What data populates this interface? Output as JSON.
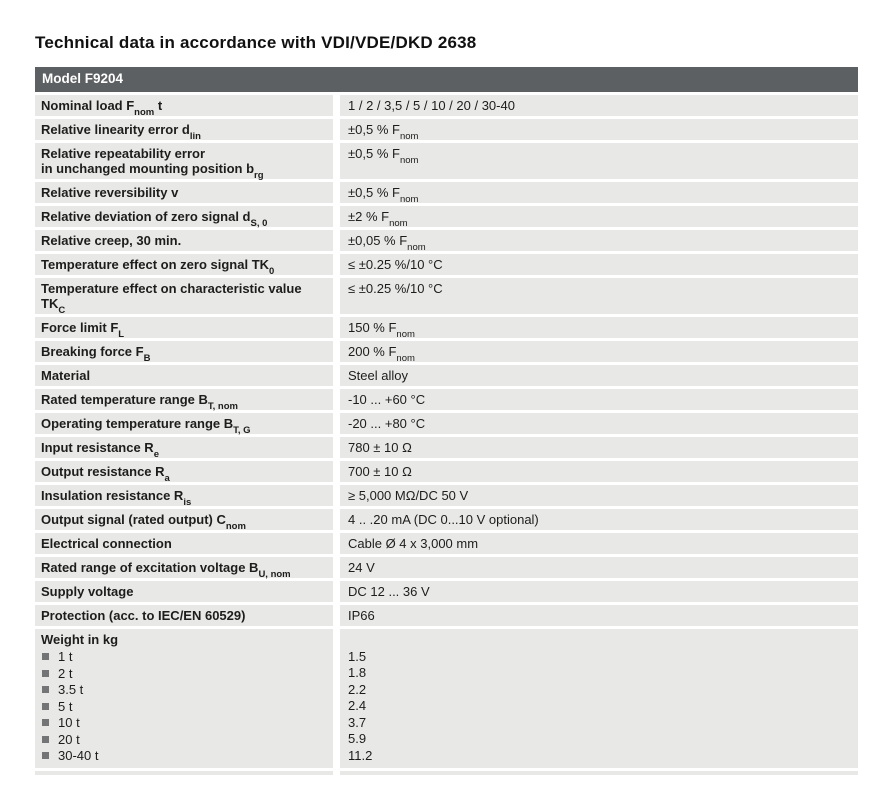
{
  "page": {
    "title": "Technical data in accordance with VDI/VDE/DKD 2638"
  },
  "table": {
    "header": "Model F9204",
    "rows": [
      {
        "label": [
          [
            "t",
            "Nominal load F"
          ],
          [
            "sub",
            "nom"
          ],
          [
            "t",
            " t"
          ]
        ],
        "value": [
          [
            "t",
            "1 / 2 / 3,5 / 5 / 10 / 20 / 30-40"
          ]
        ]
      },
      {
        "label": [
          [
            "t",
            "Relative linearity error d"
          ],
          [
            "sub",
            "lin"
          ]
        ],
        "value": [
          [
            "t",
            "±0,5 % F"
          ],
          [
            "sub",
            "nom"
          ]
        ]
      },
      {
        "label": [
          [
            "t",
            "Relative repeatability error"
          ],
          [
            "br",
            ""
          ],
          [
            "t",
            "in unchanged mounting position b"
          ],
          [
            "sub",
            "rg"
          ]
        ],
        "value": [
          [
            "t",
            "±0,5 % F"
          ],
          [
            "sub",
            "nom"
          ]
        ]
      },
      {
        "label": [
          [
            "t",
            "Relative reversibility v"
          ]
        ],
        "value": [
          [
            "t",
            "±0,5 % F"
          ],
          [
            "sub",
            "nom"
          ]
        ]
      },
      {
        "label": [
          [
            "t",
            "Relative deviation of zero signal d"
          ],
          [
            "sub",
            "S, 0"
          ]
        ],
        "value": [
          [
            "t",
            "±2 % F"
          ],
          [
            "sub",
            "nom"
          ]
        ]
      },
      {
        "label": [
          [
            "t",
            "Relative creep, 30 min."
          ]
        ],
        "value": [
          [
            "t",
            "±0,05 % F"
          ],
          [
            "sub",
            "nom"
          ]
        ]
      },
      {
        "label": [
          [
            "t",
            "Temperature effect on zero signal TK"
          ],
          [
            "sub",
            "0"
          ]
        ],
        "value": [
          [
            "t",
            "≤ ±0.25 %/10 °C"
          ]
        ]
      },
      {
        "label": [
          [
            "t",
            "Temperature effect on characteristic value TK"
          ],
          [
            "sub",
            "C"
          ]
        ],
        "value": [
          [
            "t",
            "≤ ±0.25 %/10 °C"
          ]
        ]
      },
      {
        "label": [
          [
            "t",
            "Force limit F"
          ],
          [
            "sub",
            "L"
          ]
        ],
        "value": [
          [
            "t",
            "150 % F"
          ],
          [
            "sub",
            "nom"
          ]
        ]
      },
      {
        "label": [
          [
            "t",
            "Breaking force F"
          ],
          [
            "sub",
            "B"
          ]
        ],
        "value": [
          [
            "t",
            "200 % F"
          ],
          [
            "sub",
            "nom"
          ]
        ]
      },
      {
        "label": [
          [
            "t",
            "Material"
          ]
        ],
        "value": [
          [
            "t",
            "Steel alloy"
          ]
        ]
      },
      {
        "label": [
          [
            "t",
            "Rated temperature range B"
          ],
          [
            "sub",
            "T, nom"
          ]
        ],
        "value": [
          [
            "t",
            "-10 ... +60 °C"
          ]
        ]
      },
      {
        "label": [
          [
            "t",
            "Operating temperature range B"
          ],
          [
            "sub",
            "T, G"
          ]
        ],
        "value": [
          [
            "t",
            "-20 ... +80 °C"
          ]
        ]
      },
      {
        "label": [
          [
            "t",
            "Input resistance R"
          ],
          [
            "sub",
            "e"
          ]
        ],
        "value": [
          [
            "t",
            "780 ± 10 Ω"
          ]
        ]
      },
      {
        "label": [
          [
            "t",
            "Output resistance R"
          ],
          [
            "sub",
            "a"
          ]
        ],
        "value": [
          [
            "t",
            "700 ± 10 Ω"
          ]
        ]
      },
      {
        "label": [
          [
            "t",
            "Insulation resistance R"
          ],
          [
            "sub",
            "is"
          ]
        ],
        "value": [
          [
            "t",
            "≥ 5,000 MΩ/DC 50 V"
          ]
        ]
      },
      {
        "label": [
          [
            "t",
            "Output signal (rated output) C"
          ],
          [
            "sub",
            "nom"
          ]
        ],
        "value": [
          [
            "t",
            "4 .. .20 mA (DC 0...10 V optional)"
          ]
        ]
      },
      {
        "label": [
          [
            "t",
            "Electrical connection"
          ]
        ],
        "value": [
          [
            "t",
            "Cable Ø 4 x 3,000 mm"
          ]
        ]
      },
      {
        "label": [
          [
            "t",
            "Rated range of excitation voltage B"
          ],
          [
            "sub",
            "U, nom"
          ]
        ],
        "value": [
          [
            "t",
            "24 V"
          ]
        ]
      },
      {
        "label": [
          [
            "t",
            "Supply voltage"
          ]
        ],
        "value": [
          [
            "t",
            "DC 12 ... 36 V"
          ]
        ]
      },
      {
        "label": [
          [
            "t",
            "Protection (acc. to IEC/EN 60529)"
          ]
        ],
        "value": [
          [
            "t",
            "IP66"
          ]
        ]
      }
    ],
    "weight_section": {
      "header": "Weight in kg",
      "items": [
        {
          "label": "1 t",
          "value": "1.5"
        },
        {
          "label": "2 t",
          "value": "1.8"
        },
        {
          "label": "3.5 t",
          "value": "2.2"
        },
        {
          "label": "5 t",
          "value": "2.4"
        },
        {
          "label": "10 t",
          "value": "3.7"
        },
        {
          "label": "20 t",
          "value": "5.9"
        },
        {
          "label": "30-40 t",
          "value": "11.2"
        }
      ]
    }
  },
  "colors": {
    "header_bg": "#5d6062",
    "header_text": "#ffffff",
    "row_bg": "#e8e8e7",
    "text": "#1d1d1b",
    "bullet": "#727476"
  }
}
